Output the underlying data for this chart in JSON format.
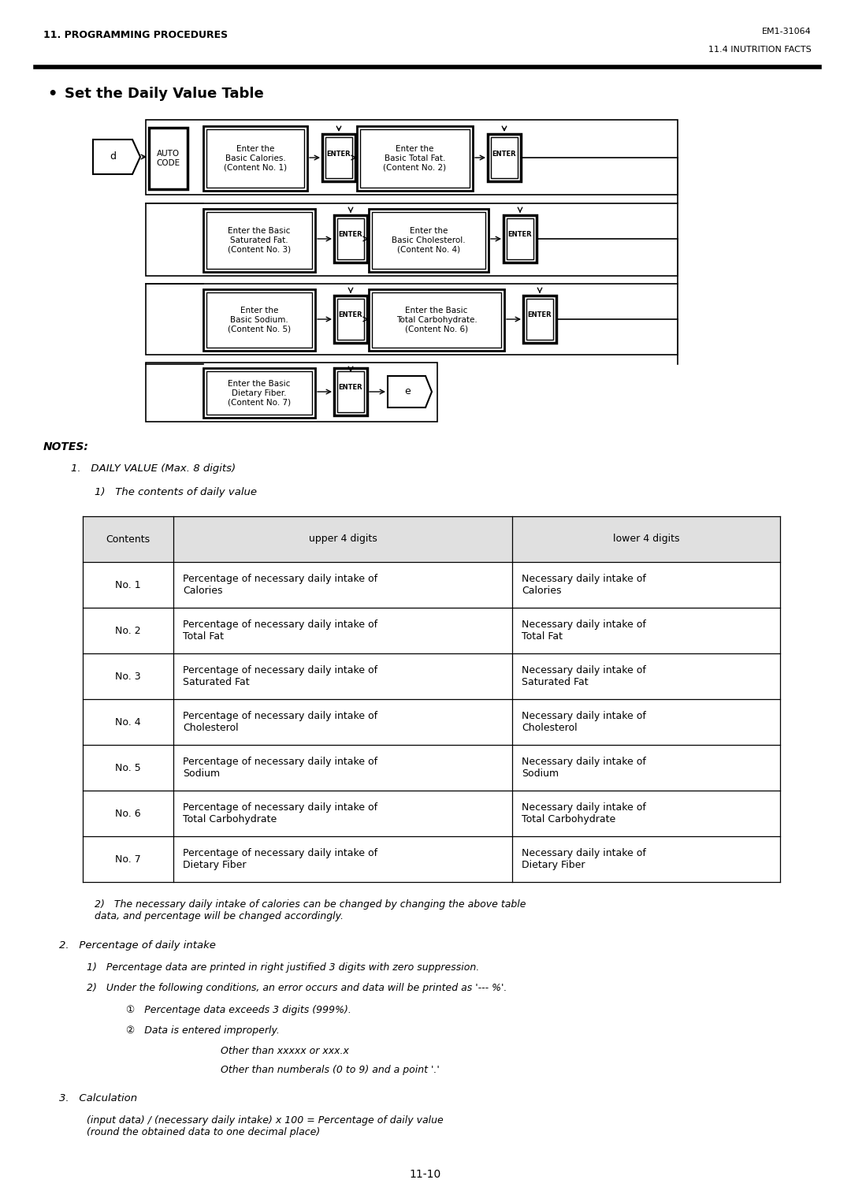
{
  "header_left": "11. PROGRAMMING PROCEDURES",
  "header_right_top": "EM1-31064",
  "header_right_bot": "11.4 INUTRITION FACTS",
  "section_title": "Set the Daily Value Table",
  "notes_title": "NOTES:",
  "note1": "DAILY VALUE (Max. 8 digits)",
  "note1_sub": "The contents of daily value",
  "table_headers": [
    "Contents",
    "upper 4 digits",
    "lower 4 digits"
  ],
  "table_rows": [
    [
      "No. 1",
      "Percentage of necessary daily intake of\nCalories",
      "Necessary daily intake of\nCalories"
    ],
    [
      "No. 2",
      "Percentage of necessary daily intake of\nTotal Fat",
      "Necessary daily intake of\nTotal Fat"
    ],
    [
      "No. 3",
      "Percentage of necessary daily intake of\nSaturated Fat",
      "Necessary daily intake of\nSaturated Fat"
    ],
    [
      "No. 4",
      "Percentage of necessary daily intake of\nCholesterol",
      "Necessary daily intake of\nCholesterol"
    ],
    [
      "No. 5",
      "Percentage of necessary daily intake of\nSodium",
      "Necessary daily intake of\nSodium"
    ],
    [
      "No. 6",
      "Percentage of necessary daily intake of\nTotal Carbohydrate",
      "Necessary daily intake of\nTotal Carbohydrate"
    ],
    [
      "No. 7",
      "Percentage of necessary daily intake of\nDietary Fiber",
      "Necessary daily intake of\nDietary Fiber"
    ]
  ],
  "note2": "The necessary daily intake of calories can be changed by changing the above table\ndata, and percentage will be changed accordingly.",
  "note3_title": "Percentage of daily intake",
  "note3_1": "Percentage data are printed in right justified 3 digits with zero suppression.",
  "note3_2": "Under the following conditions, an error occurs and data will be printed as '--- %'.",
  "note3_2a": "Percentage data exceeds 3 digits (999%).",
  "note3_2b": "Data is entered improperly.",
  "note3_2b_1": "Other than xxxxx or xxx.x",
  "note3_2b_2": "Other than numberals (0 to 9) and a point '.'",
  "note4_title": "Calculation",
  "note4_text": "(input data) / (necessary daily intake) x 100 = Percentage of daily value\n(round the obtained data to one decimal place)",
  "page_num": "11-10"
}
